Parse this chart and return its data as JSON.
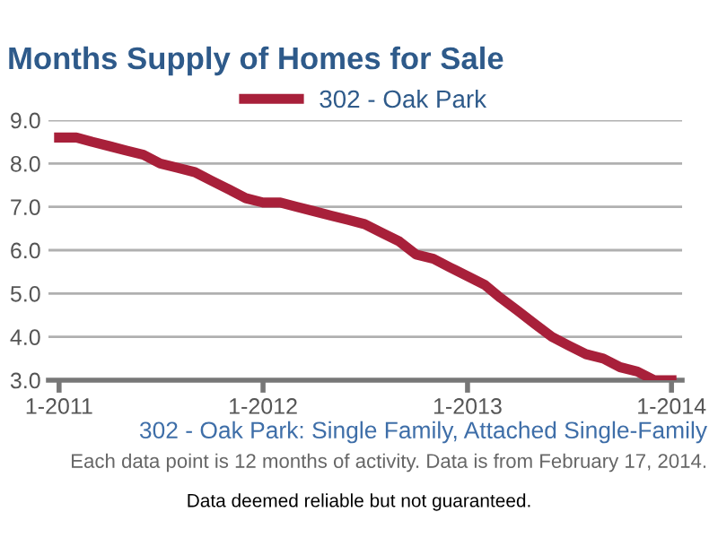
{
  "chart_data": {
    "type": "line",
    "title": "Months Supply of Homes for Sale",
    "x": [
      "2011-01",
      "2011-02",
      "2011-03",
      "2011-04",
      "2011-05",
      "2011-06",
      "2011-07",
      "2011-08",
      "2011-09",
      "2011-10",
      "2011-11",
      "2011-12",
      "2012-01",
      "2012-02",
      "2012-03",
      "2012-04",
      "2012-05",
      "2012-06",
      "2012-07",
      "2012-08",
      "2012-09",
      "2012-10",
      "2012-11",
      "2012-12",
      "2013-01",
      "2013-02",
      "2013-03",
      "2013-04",
      "2013-05",
      "2013-06",
      "2013-07",
      "2013-08",
      "2013-09",
      "2013-10",
      "2013-11",
      "2013-12",
      "2014-01"
    ],
    "series": [
      {
        "name": "302 - Oak Park",
        "color": "#a8203a",
        "values": [
          8.6,
          8.6,
          8.5,
          8.4,
          8.3,
          8.2,
          8.0,
          7.9,
          7.8,
          7.6,
          7.4,
          7.2,
          7.1,
          7.1,
          7.0,
          6.9,
          6.8,
          6.7,
          6.6,
          6.4,
          6.2,
          5.9,
          5.8,
          5.6,
          5.4,
          5.2,
          4.9,
          4.6,
          4.3,
          4.0,
          3.8,
          3.6,
          3.5,
          3.3,
          3.2,
          3.0,
          3.0
        ]
      }
    ],
    "xlim": [
      "2010-12-13",
      "2014-01-20"
    ],
    "xticks": [
      {
        "value": "2011-01",
        "label": "1-2011"
      },
      {
        "value": "2012-01",
        "label": "1-2012"
      },
      {
        "value": "2013-01",
        "label": "1-2013"
      },
      {
        "value": "2014-01",
        "label": "1-2014"
      }
    ],
    "ylim": [
      3.0,
      9.0
    ],
    "yticks": [
      {
        "value": 3.0,
        "label": "3.0"
      },
      {
        "value": 4.0,
        "label": "4.0"
      },
      {
        "value": 5.0,
        "label": "5.0"
      },
      {
        "value": 6.0,
        "label": "6.0"
      },
      {
        "value": 7.0,
        "label": "7.0"
      },
      {
        "value": 8.0,
        "label": "8.0"
      },
      {
        "value": 9.0,
        "label": "9.0"
      }
    ],
    "grid": "y",
    "legend": "top",
    "marker": "none",
    "line_style": "solid",
    "annotations": [
      "302 - Oak Park: Single Family, Attached Single-Family",
      "Each data point is 12 months of activity. Data is from February 17, 2014.",
      "Data deemed reliable but not guaranteed."
    ]
  }
}
